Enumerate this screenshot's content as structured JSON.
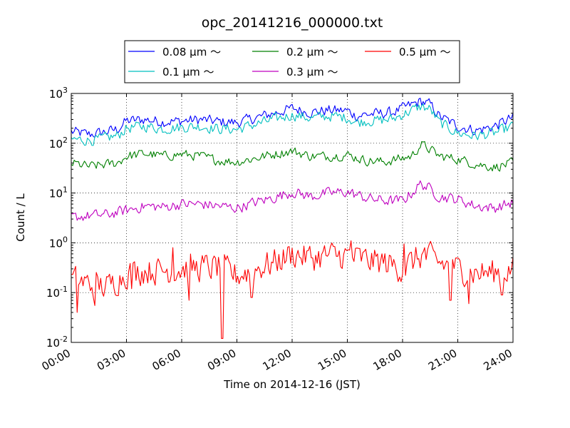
{
  "chart_data": {
    "type": "line",
    "title": "opc_20141216_000000.txt",
    "xlabel": "Time on 2014-12-16 (JST)",
    "ylabel": "Count / L",
    "x_ticks": [
      "00:00",
      "03:00",
      "06:00",
      "09:00",
      "12:00",
      "15:00",
      "18:00",
      "21:00",
      "24:00"
    ],
    "x_range_hours": [
      0,
      24
    ],
    "y_scale": "log",
    "ylim": [
      0.01,
      1000
    ],
    "y_ticks": [
      {
        "base": "10",
        "exp": "-2"
      },
      {
        "base": "10",
        "exp": "-1"
      },
      {
        "base": "10",
        "exp": "0"
      },
      {
        "base": "10",
        "exp": "1"
      },
      {
        "base": "10",
        "exp": "2"
      },
      {
        "base": "10",
        "exp": "3"
      }
    ],
    "grid": true,
    "legend_position": "top-center, outside plot",
    "series": [
      {
        "name": "0.08 μm ～",
        "color": "#0000ff",
        "noise": 0.1,
        "keypoints": [
          [
            0,
            170
          ],
          [
            1,
            150
          ],
          [
            1.5,
            160
          ],
          [
            2.5,
            190
          ],
          [
            3,
            280
          ],
          [
            4,
            300
          ],
          [
            5,
            270
          ],
          [
            6,
            280
          ],
          [
            7,
            300
          ],
          [
            8,
            270
          ],
          [
            9,
            260
          ],
          [
            10,
            320
          ],
          [
            11,
            400
          ],
          [
            12,
            500
          ],
          [
            13,
            420
          ],
          [
            14,
            460
          ],
          [
            15,
            450
          ],
          [
            15.5,
            350
          ],
          [
            16,
            380
          ],
          [
            17,
            400
          ],
          [
            17.5,
            420
          ],
          [
            18,
            500
          ],
          [
            19,
            700
          ],
          [
            19.5,
            600
          ],
          [
            20,
            350
          ],
          [
            21,
            220
          ],
          [
            22,
            180
          ],
          [
            23,
            220
          ],
          [
            24,
            330
          ]
        ]
      },
      {
        "name": "0.1 μm ～",
        "color": "#00bfbf",
        "noise": 0.1,
        "keypoints": [
          [
            0,
            120
          ],
          [
            1,
            115
          ],
          [
            1.5,
            120
          ],
          [
            2.5,
            140
          ],
          [
            3,
            200
          ],
          [
            4,
            220
          ],
          [
            5,
            195
          ],
          [
            6,
            210
          ],
          [
            7,
            220
          ],
          [
            8,
            195
          ],
          [
            9,
            190
          ],
          [
            10,
            240
          ],
          [
            11,
            300
          ],
          [
            12,
            370
          ],
          [
            13,
            320
          ],
          [
            14,
            350
          ],
          [
            15,
            330
          ],
          [
            15.5,
            260
          ],
          [
            16,
            280
          ],
          [
            17,
            290
          ],
          [
            17.5,
            310
          ],
          [
            18,
            380
          ],
          [
            19,
            550
          ],
          [
            19.5,
            480
          ],
          [
            20,
            260
          ],
          [
            21,
            160
          ],
          [
            22,
            140
          ],
          [
            23,
            160
          ],
          [
            24,
            220
          ]
        ]
      },
      {
        "name": "0.2 μm ～",
        "color": "#008000",
        "noise": 0.09,
        "keypoints": [
          [
            0,
            40
          ],
          [
            1,
            34
          ],
          [
            2,
            38
          ],
          [
            2.5,
            40
          ],
          [
            3,
            55
          ],
          [
            4,
            62
          ],
          [
            5,
            55
          ],
          [
            6,
            60
          ],
          [
            7,
            55
          ],
          [
            8,
            45
          ],
          [
            9,
            42
          ],
          [
            10,
            50
          ],
          [
            11,
            60
          ],
          [
            12,
            70
          ],
          [
            12.5,
            62
          ],
          [
            13,
            55
          ],
          [
            14,
            55
          ],
          [
            15,
            58
          ],
          [
            16,
            45
          ],
          [
            17,
            42
          ],
          [
            18,
            50
          ],
          [
            18.5,
            55
          ],
          [
            19,
            95
          ],
          [
            19.5,
            75
          ],
          [
            20,
            55
          ],
          [
            21,
            48
          ],
          [
            22,
            38
          ],
          [
            23,
            33
          ],
          [
            24,
            40
          ]
        ]
      },
      {
        "name": "0.3 μm ～",
        "color": "#bf00bf",
        "noise": 0.1,
        "keypoints": [
          [
            0,
            3.2
          ],
          [
            1,
            3.5
          ],
          [
            2,
            3.7
          ],
          [
            3,
            4.5
          ],
          [
            4,
            5.5
          ],
          [
            5,
            5.2
          ],
          [
            6,
            6.0
          ],
          [
            7,
            6.0
          ],
          [
            8,
            5.5
          ],
          [
            9,
            5.0
          ],
          [
            10,
            6.5
          ],
          [
            11,
            8.0
          ],
          [
            12,
            10.5
          ],
          [
            13,
            8.5
          ],
          [
            14,
            10.0
          ],
          [
            15,
            10.5
          ],
          [
            16,
            8.0
          ],
          [
            17,
            7.0
          ],
          [
            18,
            7.0
          ],
          [
            18.5,
            10
          ],
          [
            19,
            15.5
          ],
          [
            19.5,
            12
          ],
          [
            20,
            8.5
          ],
          [
            21,
            7.5
          ],
          [
            22,
            5.5
          ],
          [
            23,
            5.0
          ],
          [
            24,
            6.5
          ]
        ]
      },
      {
        "name": "0.5 μm ～",
        "color": "#ff0000",
        "noise": 0.26,
        "keypoints": [
          [
            0,
            0.18
          ],
          [
            1,
            0.15
          ],
          [
            2,
            0.13
          ],
          [
            3,
            0.25
          ],
          [
            4,
            0.28
          ],
          [
            5,
            0.28
          ],
          [
            6,
            0.3
          ],
          [
            7,
            0.32
          ],
          [
            8,
            0.32
          ],
          [
            9,
            0.22
          ],
          [
            10,
            0.3
          ],
          [
            11,
            0.4
          ],
          [
            12,
            0.6
          ],
          [
            13,
            0.5
          ],
          [
            14,
            0.55
          ],
          [
            15,
            0.55
          ],
          [
            16,
            0.45
          ],
          [
            17,
            0.4
          ],
          [
            18,
            0.3
          ],
          [
            19,
            0.55
          ],
          [
            19.5,
            0.5
          ],
          [
            20,
            0.4
          ],
          [
            21,
            0.3
          ],
          [
            22,
            0.25
          ],
          [
            23,
            0.25
          ],
          [
            24,
            0.3
          ]
        ],
        "spikes": [
          [
            0.3,
            0.04
          ],
          [
            1.3,
            0.055
          ],
          [
            3.3,
            0.12
          ],
          [
            5.5,
            0.8
          ],
          [
            6.4,
            0.07
          ],
          [
            8.2,
            0.012
          ],
          [
            9.8,
            0.08
          ],
          [
            15.2,
            1.1
          ],
          [
            18.1,
            0.95
          ],
          [
            19.2,
            0.8
          ],
          [
            20.6,
            0.07
          ],
          [
            21.6,
            0.06
          ],
          [
            23.4,
            0.09
          ]
        ]
      }
    ]
  }
}
